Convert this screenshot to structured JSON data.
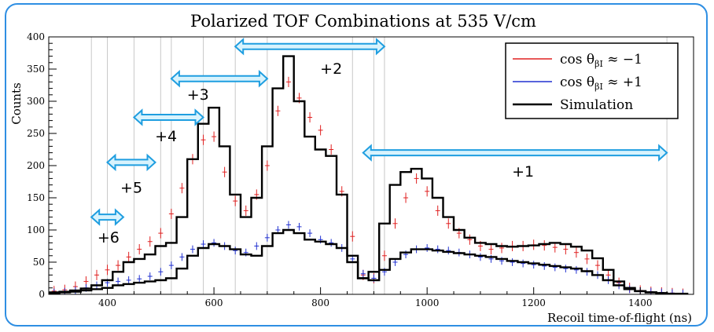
{
  "chart_data": {
    "type": "line",
    "title": "Polarized TOF Combinations at 535 V/cm",
    "xlabel": "Recoil time-of-flight (ns)",
    "ylabel": "Counts",
    "xlim": [
      290,
      1500
    ],
    "ylim": [
      0,
      400
    ],
    "xticks": [
      "400",
      "600",
      "800",
      "1000",
      "1200",
      "1400"
    ],
    "yticks": [
      "0",
      "50",
      "100",
      "150",
      "200",
      "250",
      "300",
      "350",
      "400"
    ],
    "legend_position": "top-right",
    "series": [
      {
        "name": "cos θ_βI ≈ −1",
        "legend_main": "cos θ",
        "legend_sub": "βI",
        "legend_rest": " ≈ −1",
        "color": "#e02020",
        "x": [
          300,
          320,
          340,
          360,
          380,
          400,
          420,
          440,
          460,
          480,
          500,
          520,
          540,
          560,
          580,
          600,
          620,
          640,
          660,
          680,
          700,
          720,
          740,
          760,
          780,
          800,
          820,
          840,
          860,
          880,
          900,
          920,
          940,
          960,
          980,
          1000,
          1020,
          1040,
          1060,
          1080,
          1100,
          1120,
          1140,
          1160,
          1180,
          1200,
          1220,
          1240,
          1260,
          1280,
          1300,
          1320,
          1340,
          1360,
          1380,
          1400,
          1420,
          1440,
          1460,
          1480
        ],
        "y": [
          5,
          7,
          12,
          20,
          30,
          38,
          45,
          58,
          70,
          82,
          95,
          125,
          165,
          210,
          240,
          245,
          190,
          145,
          130,
          155,
          200,
          285,
          330,
          305,
          275,
          255,
          225,
          160,
          90,
          30,
          25,
          60,
          110,
          150,
          180,
          160,
          130,
          110,
          95,
          85,
          75,
          70,
          72,
          75,
          75,
          77,
          76,
          73,
          70,
          65,
          55,
          45,
          30,
          18,
          10,
          6,
          4,
          3,
          2,
          1
        ],
        "yerr": 8
      },
      {
        "name": "cos θ_βI ≈ +1",
        "legend_main": "cos θ",
        "legend_sub": "βI",
        "legend_rest": " ≈ +1",
        "color": "#2030d0",
        "x": [
          300,
          320,
          340,
          360,
          380,
          400,
          420,
          440,
          460,
          480,
          500,
          520,
          540,
          560,
          580,
          600,
          620,
          640,
          660,
          680,
          700,
          720,
          740,
          760,
          780,
          800,
          820,
          840,
          860,
          880,
          900,
          920,
          940,
          960,
          980,
          1000,
          1020,
          1040,
          1060,
          1080,
          1100,
          1120,
          1140,
          1160,
          1180,
          1200,
          1220,
          1240,
          1260,
          1280,
          1300,
          1320,
          1340,
          1360,
          1380,
          1400,
          1420,
          1440,
          1460,
          1480
        ],
        "y": [
          3,
          4,
          6,
          10,
          14,
          18,
          20,
          22,
          24,
          28,
          35,
          45,
          58,
          70,
          78,
          80,
          75,
          68,
          65,
          75,
          88,
          100,
          108,
          105,
          95,
          85,
          80,
          72,
          55,
          32,
          25,
          35,
          50,
          62,
          70,
          72,
          70,
          68,
          65,
          62,
          58,
          55,
          52,
          50,
          48,
          46,
          44,
          42,
          40,
          38,
          35,
          30,
          22,
          14,
          8,
          5,
          4,
          3,
          2,
          1
        ],
        "yerr": 6
      },
      {
        "name": "Simulation",
        "color": "#000000",
        "x": [
          300,
          320,
          340,
          360,
          380,
          400,
          420,
          440,
          460,
          480,
          500,
          520,
          540,
          560,
          580,
          600,
          620,
          640,
          660,
          680,
          700,
          720,
          740,
          760,
          780,
          800,
          820,
          840,
          860,
          880,
          900,
          920,
          940,
          960,
          980,
          1000,
          1020,
          1040,
          1060,
          1080,
          1100,
          1120,
          1140,
          1160,
          1180,
          1200,
          1220,
          1240,
          1260,
          1280,
          1300,
          1320,
          1340,
          1360,
          1380,
          1400,
          1420,
          1440,
          1460,
          1480
        ],
        "y": [
          3,
          4,
          6,
          9,
          14,
          22,
          35,
          50,
          55,
          62,
          75,
          80,
          120,
          210,
          265,
          290,
          230,
          155,
          120,
          150,
          230,
          320,
          370,
          300,
          245,
          225,
          215,
          155,
          60,
          25,
          35,
          110,
          170,
          190,
          195,
          180,
          150,
          120,
          100,
          88,
          80,
          78,
          75,
          74,
          75,
          76,
          78,
          80,
          78,
          74,
          68,
          56,
          38,
          20,
          10,
          5,
          3,
          2,
          1,
          1
        ]
      },
      {
        "name": "Simulation",
        "color": "#000000",
        "x": [
          300,
          320,
          340,
          360,
          380,
          400,
          420,
          440,
          460,
          480,
          500,
          520,
          540,
          560,
          580,
          600,
          620,
          640,
          660,
          680,
          700,
          720,
          740,
          760,
          780,
          800,
          820,
          840,
          860,
          880,
          900,
          920,
          940,
          960,
          980,
          1000,
          1020,
          1040,
          1060,
          1080,
          1100,
          1120,
          1140,
          1160,
          1180,
          1200,
          1220,
          1240,
          1260,
          1280,
          1300,
          1320,
          1340,
          1360,
          1380,
          1400,
          1420,
          1440,
          1460,
          1480
        ],
        "y": [
          2,
          3,
          4,
          6,
          8,
          10,
          14,
          16,
          18,
          20,
          22,
          25,
          40,
          60,
          72,
          78,
          75,
          70,
          62,
          60,
          75,
          95,
          100,
          95,
          85,
          82,
          78,
          72,
          50,
          25,
          22,
          38,
          55,
          65,
          70,
          70,
          68,
          66,
          64,
          62,
          60,
          58,
          55,
          52,
          50,
          48,
          46,
          44,
          42,
          40,
          36,
          30,
          22,
          14,
          8,
          5,
          3,
          2,
          1,
          1
        ]
      }
    ],
    "vlines": [
      370,
      400,
      450,
      500,
      520,
      580,
      640,
      700,
      860,
      900,
      920,
      1450
    ],
    "annotations": [
      {
        "label": "+6",
        "x": 402,
        "y": 88,
        "arrow": [
          370,
          430,
          120
        ]
      },
      {
        "label": "+5",
        "x": 445,
        "y": 165,
        "arrow": [
          400,
          490,
          205
        ]
      },
      {
        "label": "+4",
        "x": 510,
        "y": 245,
        "arrow": [
          450,
          580,
          275
        ]
      },
      {
        "label": "+3",
        "x": 570,
        "y": 310,
        "arrow": [
          520,
          700,
          335
        ]
      },
      {
        "label": "+2",
        "x": 820,
        "y": 350,
        "arrow": [
          640,
          920,
          385
        ]
      },
      {
        "label": "+1",
        "x": 1180,
        "y": 190,
        "arrow": [
          880,
          1450,
          220
        ]
      }
    ]
  }
}
